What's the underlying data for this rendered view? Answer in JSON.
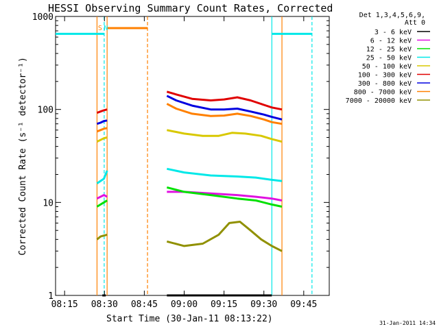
{
  "chart_data": {
    "type": "line",
    "title": "HESSI Observing Summary Count Rates, Corrected",
    "xlabel": "Start Time (30-Jan-11 08:13:22)",
    "ylabel": "Corrected Count Rate (s⁻¹ detector⁻¹)",
    "y_scale": "log",
    "ylim": [
      1,
      1000
    ],
    "xlim_minutes": [
      -3.4,
      99.6
    ],
    "x_ticks": [
      {
        "minutes": 0,
        "label": "08:15"
      },
      {
        "minutes": 15,
        "label": "08:30"
      },
      {
        "minutes": 30,
        "label": "08:45"
      },
      {
        "minutes": 45,
        "label": "09:00"
      },
      {
        "minutes": 60,
        "label": "09:15"
      },
      {
        "minutes": 75,
        "label": "09:30"
      },
      {
        "minutes": 90,
        "label": "09:45"
      }
    ],
    "y_ticks": [
      {
        "value": 1,
        "label": "1"
      },
      {
        "value": 10,
        "label": "10"
      },
      {
        "value": 100,
        "label": "100"
      },
      {
        "value": 1000,
        "label": "1000"
      }
    ],
    "legend_header": [
      "Det 1,3,4,5,6,9,",
      "Att 0"
    ],
    "legend_position": "top-right outside",
    "series": [
      {
        "name": "3 - 6 keV",
        "color": "#000000",
        "segments": [
          {
            "x": [
              14.2,
              15.5
            ],
            "y": [
              1.0,
              1.0
            ]
          },
          {
            "x": [
              38.5,
              78.0
            ],
            "y": [
              1.0,
              1.0
            ]
          }
        ]
      },
      {
        "name": "6 - 12 keV",
        "color": "#e010e0",
        "segments": [
          {
            "x": [
              12.2,
              13.5,
              14.8,
              16.0
            ],
            "y": [
              11,
              11.5,
              12,
              11.5
            ]
          },
          {
            "x": [
              38.5,
              45,
              55,
              65,
              72,
              78,
              81.8
            ],
            "y": [
              13,
              13,
              12.5,
              12,
              11.5,
              11,
              10.5
            ]
          }
        ]
      },
      {
        "name": "12 - 25 keV",
        "color": "#00e000",
        "segments": [
          {
            "x": [
              12.2,
              13.5,
              14.8,
              16.0
            ],
            "y": [
              9,
              9.5,
              10,
              10.5
            ]
          },
          {
            "x": [
              38.5,
              45,
              55,
              65,
              72,
              78,
              81.8
            ],
            "y": [
              14.5,
              13,
              12,
              11,
              10.5,
              9.5,
              9
            ]
          }
        ]
      },
      {
        "name": "25 - 50 keV",
        "color": "#00e8e8",
        "segments": [
          {
            "x": [
              12.2,
              13.5,
              14.8,
              16.0
            ],
            "y": [
              16,
              17,
              18,
              22
            ]
          },
          {
            "x": [
              38.5,
              45,
              55,
              65,
              72,
              78,
              81.8
            ],
            "y": [
              23,
              21,
              19.5,
              19,
              18.5,
              17.5,
              17
            ]
          }
        ]
      },
      {
        "name": "50 - 100 keV",
        "color": "#d8c800",
        "segments": [
          {
            "x": [
              12.2,
              13.5,
              14.8,
              16.0
            ],
            "y": [
              45,
              47,
              49,
              50
            ]
          },
          {
            "x": [
              38.5,
              45,
              52,
              58,
              63,
              68,
              74,
              78,
              81.8
            ],
            "y": [
              60,
              55,
              52,
              52,
              56,
              55,
              52,
              48,
              45
            ]
          }
        ]
      },
      {
        "name": "100 - 300 keV",
        "color": "#e00000",
        "segments": [
          {
            "x": [
              12.2,
              13.5,
              14.8,
              16.0
            ],
            "y": [
              92,
              95,
              98,
              100
            ]
          },
          {
            "x": [
              38.5,
              42,
              48,
              55,
              60,
              65,
              70,
              75,
              78,
              81.8
            ],
            "y": [
              155,
              145,
              130,
              125,
              128,
              135,
              125,
              112,
              105,
              100
            ]
          }
        ]
      },
      {
        "name": "300 - 800 keV",
        "color": "#0000e0",
        "segments": [
          {
            "x": [
              12.2,
              13.5,
              14.8,
              16.0
            ],
            "y": [
              70,
              72,
              75,
              76
            ]
          },
          {
            "x": [
              38.5,
              42,
              48,
              55,
              60,
              65,
              70,
              75,
              78,
              81.8
            ],
            "y": [
              140,
              125,
              110,
              100,
              100,
              102,
              95,
              88,
              83,
              78
            ]
          }
        ]
      },
      {
        "name": "800 - 7000 keV",
        "color": "#ff8000",
        "segments": [
          {
            "x": [
              12.2,
              13.5,
              14.8,
              16.0
            ],
            "y": [
              58,
              60,
              62,
              63
            ]
          },
          {
            "x": [
              38.5,
              42,
              48,
              55,
              60,
              65,
              70,
              75,
              78,
              81.8
            ],
            "y": [
              115,
              102,
              90,
              85,
              86,
              90,
              85,
              78,
              73,
              70
            ]
          }
        ]
      },
      {
        "name": "7000 - 20000 keV",
        "color": "#909000",
        "segments": [
          {
            "x": [
              12.2,
              13.5,
              14.8,
              16.0
            ],
            "y": [
              4.0,
              4.3,
              4.4,
              4.5
            ]
          },
          {
            "x": [
              38.5,
              45,
              52,
              58,
              62,
              66,
              70,
              74,
              78,
              81.8
            ],
            "y": [
              3.8,
              3.4,
              3.6,
              4.5,
              6.0,
              6.2,
              5.0,
              4.0,
              3.4,
              3.0
            ]
          }
        ]
      }
    ],
    "annotations": [
      {
        "text": "S",
        "minutes": 14.9,
        "color": "#ff8000"
      },
      {
        "text": "N",
        "minutes": 16.3,
        "color": "#00e8e8"
      }
    ],
    "cyan_level_segments": [
      {
        "x": [
          -3.4,
          14.9
        ],
        "y": 650
      },
      {
        "x": [
          78.0,
          93.1
        ],
        "y": 650
      }
    ],
    "orange_level_segments": [
      {
        "x": [
          16.0,
          31.2
        ],
        "y": 750
      }
    ],
    "vertical_markers": [
      {
        "minutes": 12.2,
        "color": "#ff8000",
        "style": "solid"
      },
      {
        "minutes": 14.9,
        "color": "#00e8e8",
        "style": "dashed"
      },
      {
        "minutes": 16.0,
        "color": "#ff8000",
        "style": "solid"
      },
      {
        "minutes": 31.2,
        "color": "#ff8000",
        "style": "dashed"
      },
      {
        "minutes": 78.0,
        "color": "#00e8e8",
        "style": "solid"
      },
      {
        "minutes": 81.8,
        "color": "#ff8000",
        "style": "solid"
      },
      {
        "minutes": 93.1,
        "color": "#00e8e8",
        "style": "dashed"
      }
    ],
    "footer_date": "31-Jan-2011 14:34"
  }
}
